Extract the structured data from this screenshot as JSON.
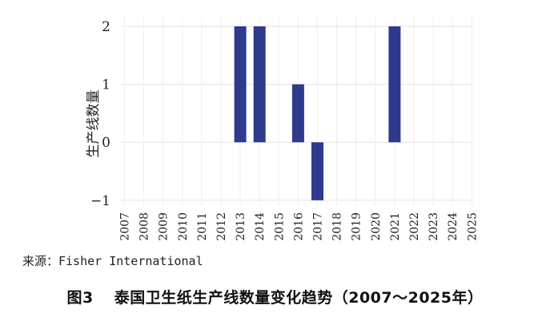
{
  "chart_data": {
    "type": "bar",
    "categories": [
      "2007",
      "2008",
      "2009",
      "2010",
      "2011",
      "2012",
      "2013",
      "2014",
      "2015",
      "2016",
      "2017",
      "2018",
      "2019",
      "2020",
      "2021",
      "2022",
      "2023",
      "2024",
      "2025"
    ],
    "values": [
      0,
      0,
      0,
      0,
      0,
      0,
      2,
      2,
      0,
      1,
      -1,
      0,
      0,
      0,
      2,
      0,
      0,
      0,
      0
    ],
    "ylabel": "生产线数量",
    "xlabel": "",
    "ylim": [
      -1,
      2
    ],
    "yticks": [
      -1,
      0,
      1,
      2
    ],
    "grid": true,
    "bar_color": "#2e3a8c"
  },
  "source_text": "来源：Fisher International",
  "caption": {
    "number": "图3",
    "title": "泰国卫生纸生产线数量变化趋势（2007～2025年）"
  }
}
